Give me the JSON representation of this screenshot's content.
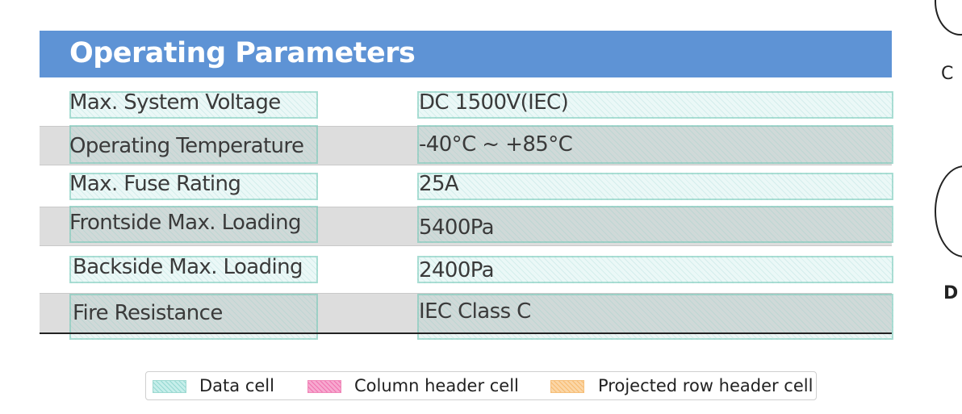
{
  "table": {
    "title": "Operating Parameters",
    "rows": [
      {
        "label": "Max. System Voltage",
        "value": "DC 1500V(IEC)"
      },
      {
        "label": "Operating Temperature",
        "value": "-40°C ~ +85°C"
      },
      {
        "label": "Max. Fuse Rating",
        "value": "25A"
      },
      {
        "label": "Frontside Max. Loading",
        "value": "5400Pa"
      },
      {
        "label": "Backside Max. Loading",
        "value": "2400Pa"
      },
      {
        "label": "Fire Resistance",
        "value": "IEC Class C"
      }
    ]
  },
  "fragments": {
    "letter_top": "C",
    "letter_bottom": "D"
  },
  "legend": {
    "items": [
      {
        "label": "Data cell",
        "color": "#bfe9e4"
      },
      {
        "label": "Column header cell",
        "color": "#f9a8d4"
      },
      {
        "label": "Projected row header cell",
        "color": "#fcd9a8"
      }
    ]
  }
}
